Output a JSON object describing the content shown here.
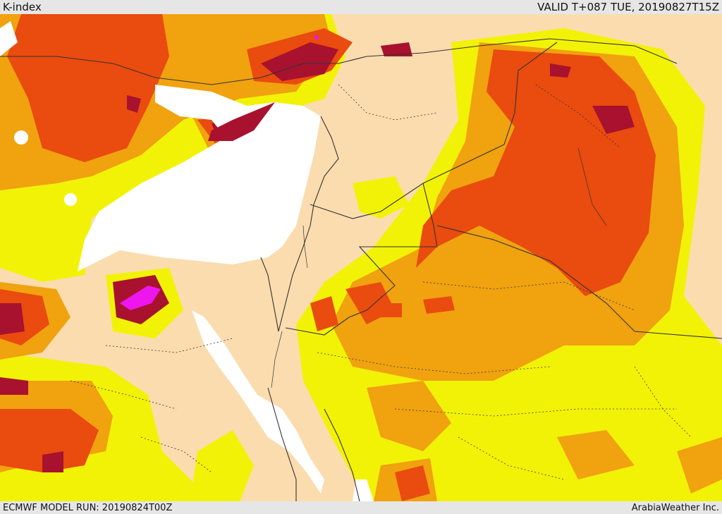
{
  "header": {
    "title": "K-index",
    "valid_time": "VALID T+087 TUE, 20190827T15Z"
  },
  "footer": {
    "model_run": "ECMWF MODEL RUN: 20190824T00Z",
    "credit": "ArabiaWeather Inc."
  },
  "legend_colors": {
    "land_low": "#fbdcae",
    "lvl1": "#f2f207",
    "lvl2": "#f0a20f",
    "lvl3": "#ea4b0e",
    "lvl4": "#a8122f",
    "lvl5": "#ee16ee",
    "sea": "#ffffff",
    "border": "#333333"
  }
}
